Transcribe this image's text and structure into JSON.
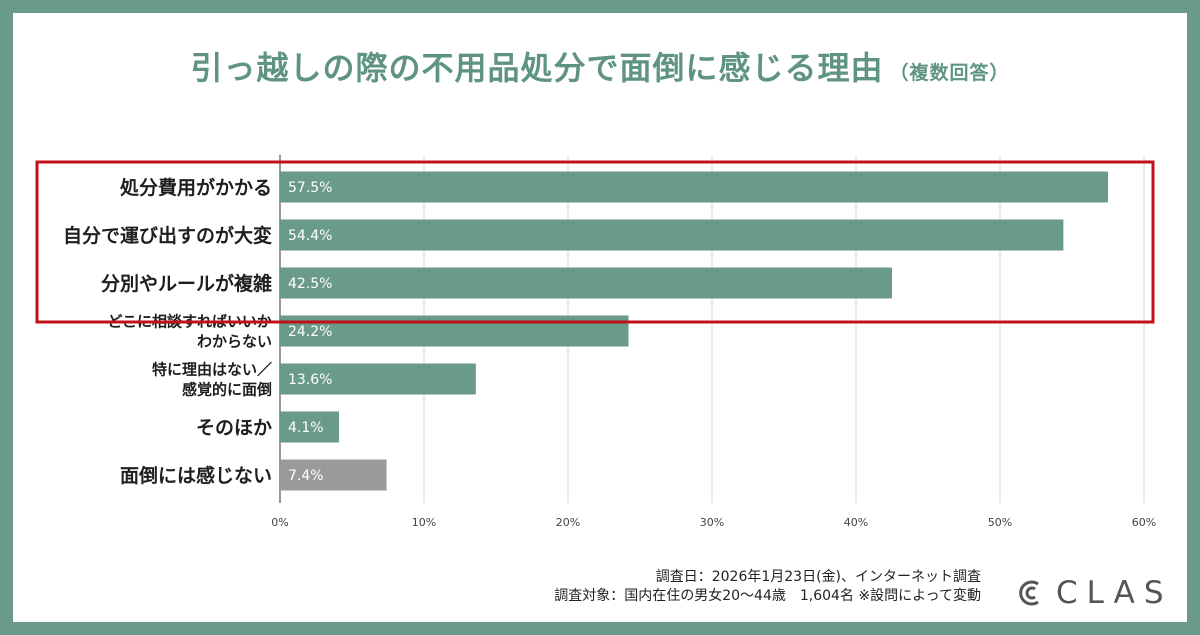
{
  "chart_data": {
    "type": "bar",
    "orientation": "horizontal",
    "title": "引っ越しの際の不用品処分で面倒に感じる理由",
    "subtitle": "（複数回答）",
    "categories": [
      "処分費用がかかる",
      "自分で運び出すのが大変",
      "分別やルールが複雑",
      "どこに相談すればいいか\nわからない",
      "特に理由はない／\n感覚的に面倒",
      "そのほか",
      "面倒には感じない"
    ],
    "values": [
      57.5,
      54.4,
      42.5,
      24.2,
      13.6,
      4.1,
      7.4
    ],
    "value_labels": [
      "57.5%",
      "54.4%",
      "42.5%",
      "24.2%",
      "13.6%",
      "4.1%",
      "7.4%"
    ],
    "xlim": [
      0,
      60
    ],
    "xticks": [
      "0%",
      "10%",
      "20%",
      "30%",
      "40%",
      "50%",
      "60%"
    ],
    "highlight_count": 3,
    "grid": true
  },
  "colors": {
    "bar": "#6a9a88",
    "bar_muted": "#9a9a9a",
    "title": "#5f9480",
    "highlight_box": "#c0101a",
    "frame": "#6a9a88"
  },
  "footnote": {
    "line1": "調査日：2026年1月23日(金)、インターネット調査",
    "line2": "調査対象：国内在住の男女20〜44歳　1,604名 ※設問によって変動"
  },
  "logo": {
    "text": "CLAS",
    "icon": "clas-logo-icon"
  }
}
